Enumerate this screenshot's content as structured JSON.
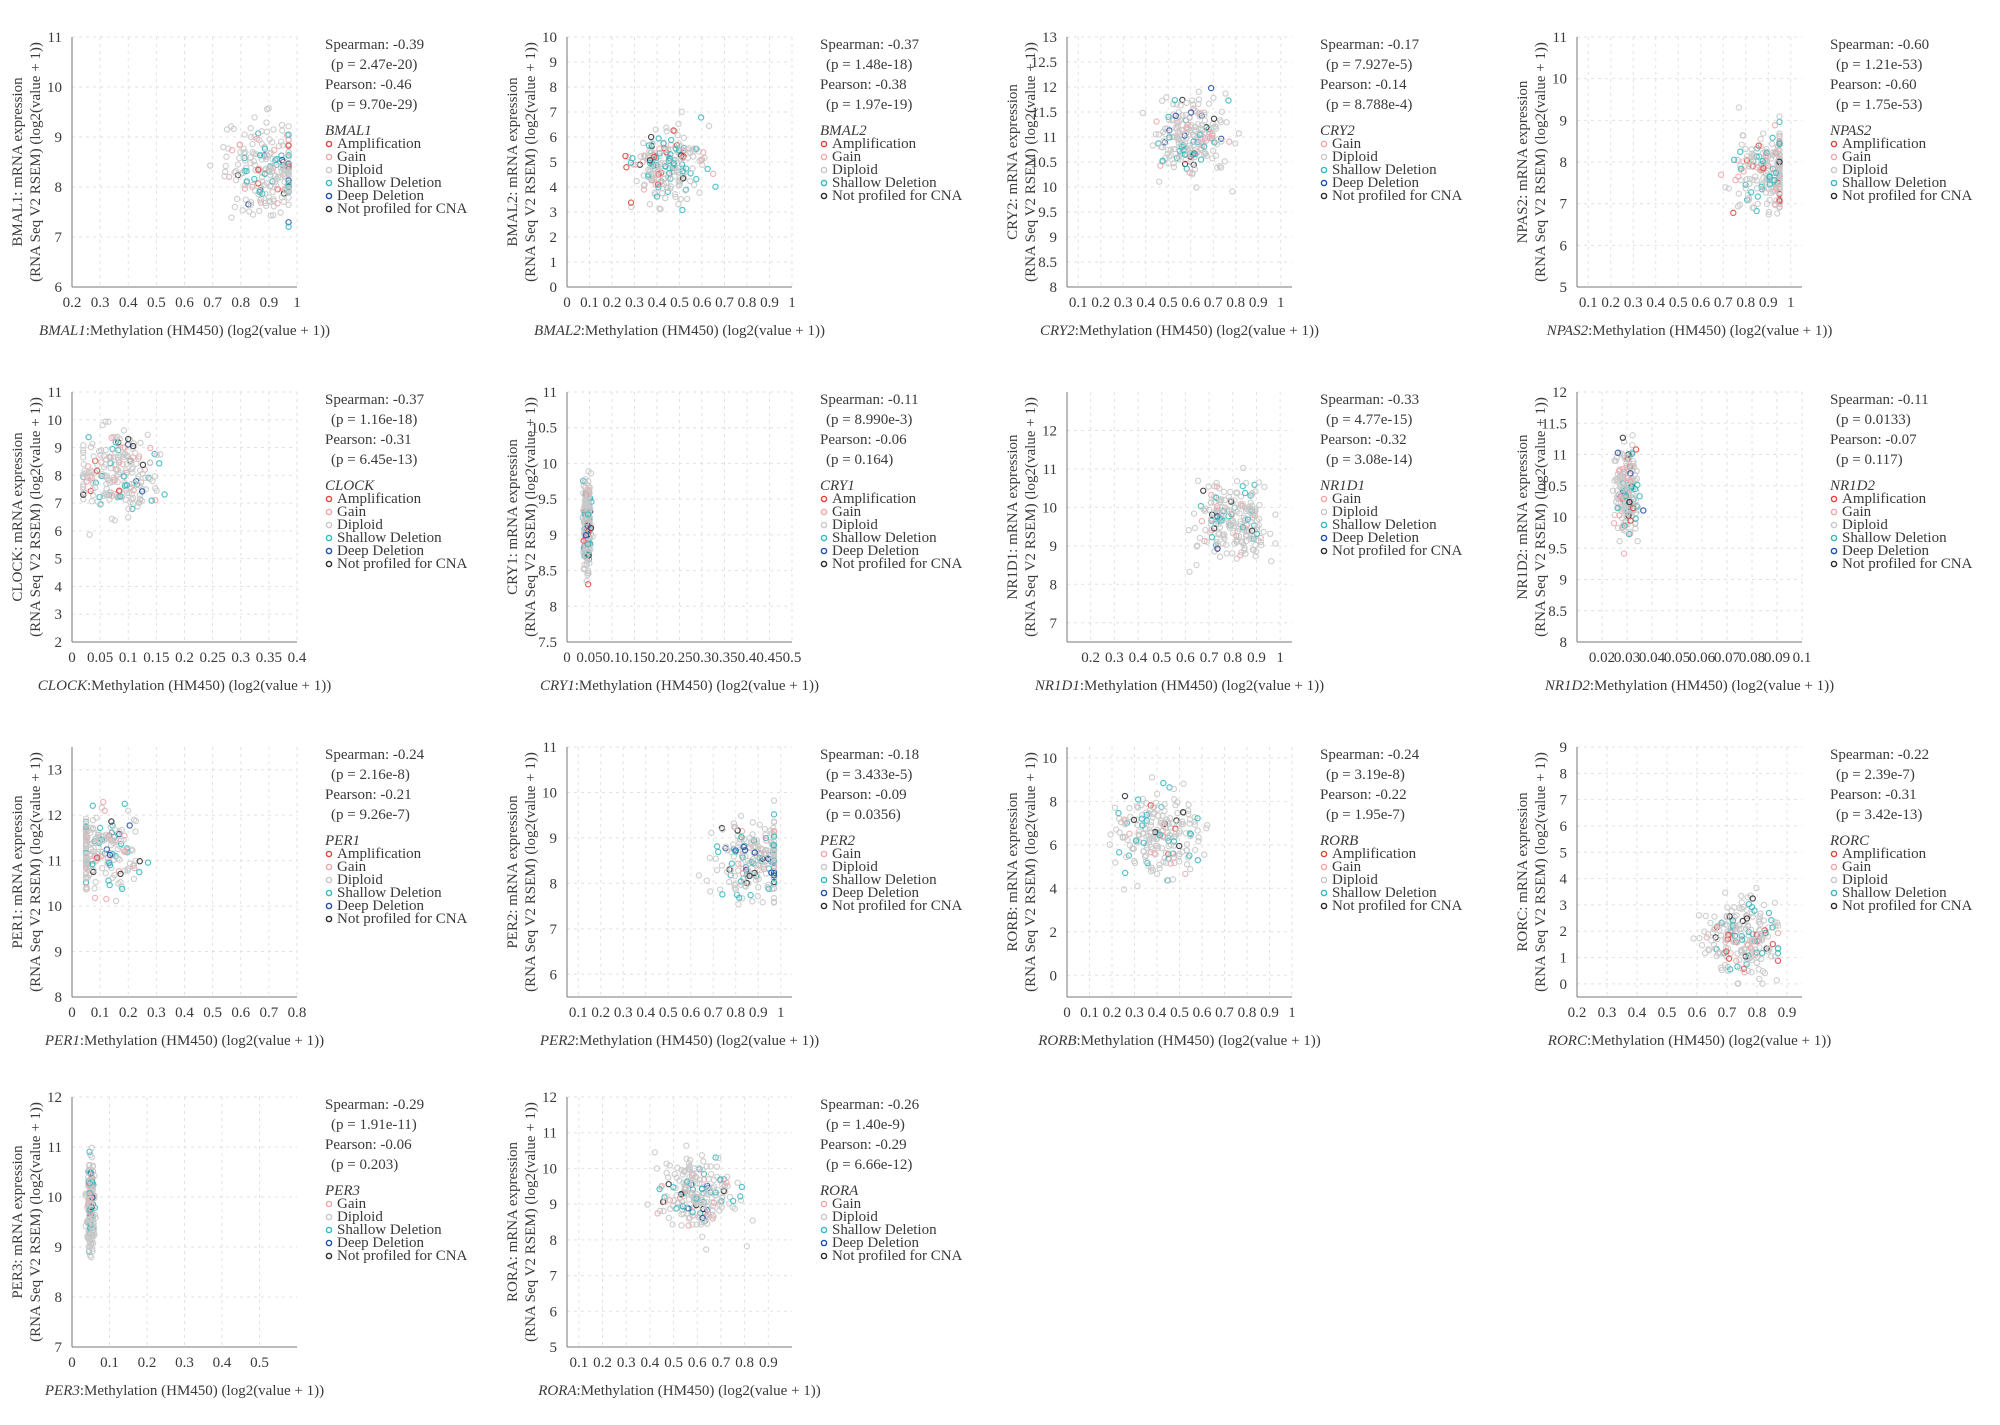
{
  "figure": {
    "title": ""
  },
  "colors": {
    "Amplification": "#e8413b",
    "Gain": "#f2a6aa",
    "Diploid": "#c8c8c8",
    "Shallow Deletion": "#35b8c0",
    "Deep Deletion": "#1f4fa8",
    "Not profiled for CNA": "#2a2a2a"
  },
  "chart_data": [
    {
      "type": "scatter",
      "gene": "BMAL1",
      "ylabel": [
        "BMAL1: mRNA expression",
        "(RNA Seq V2 RSEM) (log2(value + 1))"
      ],
      "xlabel_suffix": ":Methylation (HM450) (log2(value + 1))",
      "xlim": [
        0.2,
        1
      ],
      "ylim": [
        6,
        11
      ],
      "xticks": [
        "0.2",
        "0.3",
        "0.4",
        "0.5",
        "0.6",
        "0.7",
        "0.8",
        "0.9",
        "1"
      ],
      "yticks": [
        "6",
        "7",
        "8",
        "9",
        "10",
        "11"
      ],
      "stats": [
        "Spearman: -0.39",
        "(p = 2.47e-20)",
        "Pearson: -0.46",
        "(p = 9.70e-29)"
      ],
      "legend": [
        "Amplification",
        "Gain",
        "Diploid",
        "Shallow Deletion",
        "Deep Deletion",
        "Not profiled for CNA"
      ],
      "cloud": {
        "x": [
          0.2,
          0.97
        ],
        "y": [
          6,
          10.9
        ],
        "peak": [
          0.9,
          8.3
        ]
      }
    },
    {
      "type": "scatter",
      "gene": "BMAL2",
      "ylabel": [
        "BMAL2: mRNA expression",
        "(RNA Seq V2 RSEM) (log2(value + 1))"
      ],
      "xlabel_suffix": ":Methylation (HM450) (log2(value + 1))",
      "xlim": [
        0,
        1
      ],
      "ylim": [
        0,
        10
      ],
      "xticks": [
        "0",
        "0.1",
        "0.2",
        "0.3",
        "0.4",
        "0.5",
        "0.6",
        "0.7",
        "0.8",
        "0.9",
        "1"
      ],
      "yticks": [
        "0",
        "1",
        "2",
        "3",
        "4",
        "5",
        "6",
        "7",
        "8",
        "9",
        "10"
      ],
      "stats": [
        "Spearman: -0.37",
        "(p = 1.48e-18)",
        "Pearson: -0.38",
        "(p = 1.97e-19)"
      ],
      "legend": [
        "Amplification",
        "Gain",
        "Diploid",
        "Shallow Deletion",
        "Not profiled for CNA"
      ],
      "cloud": {
        "x": [
          0.08,
          0.88
        ],
        "y": [
          1.2,
          9.3
        ],
        "peak": [
          0.45,
          4.8
        ]
      }
    },
    {
      "type": "scatter",
      "gene": "CRY2",
      "ylabel": [
        "CRY2: mRNA expression",
        "(RNA Seq V2 RSEM) (log2(value + 1))"
      ],
      "xlabel_suffix": ":Methylation (HM450) (log2(value + 1))",
      "xlim": [
        0.05,
        1.05
      ],
      "ylim": [
        8,
        13
      ],
      "xticks": [
        "0.1",
        "0.2",
        "0.3",
        "0.4",
        "0.5",
        "0.6",
        "0.7",
        "0.8",
        "0.9",
        "1"
      ],
      "yticks": [
        "8",
        "8.5",
        "9",
        "9.5",
        "10",
        "10.5",
        "11",
        "11.5",
        "12",
        "12.5",
        "13"
      ],
      "stats": [
        "Spearman: -0.17",
        "(p = 7.927e-5)",
        "Pearson: -0.14",
        "(p = 8.788e-4)"
      ],
      "legend": [
        "Gain",
        "Diploid",
        "Shallow Deletion",
        "Deep Deletion",
        "Not profiled for CNA"
      ],
      "cloud": {
        "x": [
          0.15,
          1
        ],
        "y": [
          8.1,
          12.5
        ],
        "peak": [
          0.6,
          11
        ]
      }
    },
    {
      "type": "scatter",
      "gene": "NPAS2",
      "ylabel": [
        "NPAS2: mRNA expression",
        "(RNA Seq V2 RSEM) (log2(value + 1))"
      ],
      "xlabel_suffix": ":Methylation (HM450) (log2(value + 1))",
      "xlim": [
        0.05,
        1.05
      ],
      "ylim": [
        5,
        11
      ],
      "xticks": [
        "0.1",
        "0.2",
        "0.3",
        "0.4",
        "0.5",
        "0.6",
        "0.7",
        "0.8",
        "0.9",
        "1"
      ],
      "yticks": [
        "5",
        "6",
        "7",
        "8",
        "9",
        "10",
        "11"
      ],
      "stats": [
        "Spearman: -0.60",
        "(p = 1.21e-53)",
        "Pearson: -0.60",
        "(p = 1.75e-53)"
      ],
      "legend": [
        "Amplification",
        "Gain",
        "Diploid",
        "Shallow Deletion",
        "Not profiled for CNA"
      ],
      "cloud": {
        "x": [
          0.15,
          0.95
        ],
        "y": [
          5.4,
          10.5
        ],
        "peak": [
          0.9,
          7.8
        ]
      }
    },
    {
      "type": "scatter",
      "gene": "CLOCK",
      "ylabel": [
        "CLOCK: mRNA expression",
        "(RNA Seq V2 RSEM) (log2(value + 1))"
      ],
      "xlabel_suffix": ":Methylation (HM450) (log2(value + 1))",
      "xlim": [
        0,
        0.4
      ],
      "ylim": [
        2,
        11
      ],
      "xticks": [
        "0",
        "0.05",
        "0.1",
        "0.15",
        "0.2",
        "0.25",
        "0.3",
        "0.35",
        "0.4"
      ],
      "yticks": [
        "2",
        "3",
        "4",
        "5",
        "6",
        "7",
        "8",
        "9",
        "10",
        "11"
      ],
      "stats": [
        "Spearman: -0.37",
        "(p = 1.16e-18)",
        "Pearson: -0.31",
        "(p = 6.45e-13)"
      ],
      "legend": [
        "Amplification",
        "Gain",
        "Diploid",
        "Shallow Deletion",
        "Deep Deletion",
        "Not profiled for CNA"
      ],
      "cloud": {
        "x": [
          0.02,
          0.37
        ],
        "y": [
          2.8,
          10.9
        ],
        "peak": [
          0.08,
          8
        ]
      }
    },
    {
      "type": "scatter",
      "gene": "CRY1",
      "ylabel": [
        "CRY1: mRNA expression",
        "(RNA Seq V2 RSEM) (log2(value + 1))"
      ],
      "xlabel_suffix": ":Methylation (HM450) (log2(value + 1))",
      "xlim": [
        0,
        0.5
      ],
      "ylim": [
        7.5,
        11
      ],
      "xticks": [
        "0",
        "0.05",
        "0.1",
        "0.15",
        "0.2",
        "0.25",
        "0.3",
        "0.35",
        "0.4",
        "0.45",
        "0.5"
      ],
      "yticks": [
        "7.5",
        "8",
        "8.5",
        "9",
        "9.5",
        "10",
        "10.5",
        "11"
      ],
      "stats": [
        "Spearman: -0.11",
        "(p = 8.990e-3)",
        "Pearson: -0.06",
        "(p = 0.164)"
      ],
      "legend": [
        "Amplification",
        "Gain",
        "Diploid",
        "Shallow Deletion",
        "Deep Deletion",
        "Not profiled for CNA"
      ],
      "cloud": {
        "x": [
          0.03,
          0.07
        ],
        "y": [
          7.7,
          10.9
        ],
        "peak": [
          0.045,
          9.1
        ]
      }
    },
    {
      "type": "scatter",
      "gene": "NR1D1",
      "ylabel": [
        "NR1D1: mRNA expression",
        "(RNA Seq V2 RSEM) (log2(value + 1))"
      ],
      "xlabel_suffix": ":Methylation (HM450) (log2(value + 1))",
      "xlim": [
        0.1,
        1.05
      ],
      "ylim": [
        6.5,
        13
      ],
      "xticks": [
        "0.2",
        "0.3",
        "0.4",
        "0.5",
        "0.6",
        "0.7",
        "0.8",
        "0.9",
        "1"
      ],
      "yticks": [
        "7",
        "8",
        "9",
        "10",
        "11",
        "12"
      ],
      "stats": [
        "Spearman: -0.33",
        "(p = 4.77e-15)",
        "Pearson: -0.32",
        "(p = 3.08e-14)"
      ],
      "legend": [
        "Gain",
        "Diploid",
        "Shallow Deletion",
        "Deep Deletion",
        "Not profiled for CNA"
      ],
      "cloud": {
        "x": [
          0.2,
          0.98
        ],
        "y": [
          7,
          12.2
        ],
        "peak": [
          0.8,
          9.6
        ]
      }
    },
    {
      "type": "scatter",
      "gene": "NR1D2",
      "ylabel": [
        "NR1D2: mRNA expression",
        "(RNA Seq V2 RSEM) (log2(value + 1))"
      ],
      "xlabel_suffix": ":Methylation (HM450) (log2(value + 1))",
      "xlim": [
        0.01,
        0.1
      ],
      "ylim": [
        8,
        12
      ],
      "xticks": [
        "0.02",
        "0.03",
        "0.04",
        "0.05",
        "0.06",
        "0.07",
        "0.08",
        "0.09",
        "0.1"
      ],
      "yticks": [
        "8",
        "8.5",
        "9",
        "9.5",
        "10",
        "10.5",
        "11",
        "11.5",
        "12"
      ],
      "stats": [
        "Spearman: -0.11",
        "(p = 0.0133)",
        "Pearson: -0.07",
        "(p = 0.117)"
      ],
      "legend": [
        "Amplification",
        "Gain",
        "Diploid",
        "Shallow Deletion",
        "Deep Deletion",
        "Not profiled for CNA"
      ],
      "cloud": {
        "x": [
          0.024,
          0.045
        ],
        "y": [
          8.3,
          11.9
        ],
        "peak": [
          0.03,
          10.4
        ]
      }
    },
    {
      "type": "scatter",
      "gene": "PER1",
      "ylabel": [
        "PER1: mRNA expression",
        "(RNA Seq V2 RSEM) (log2(value + 1))"
      ],
      "xlabel_suffix": ":Methylation (HM450) (log2(value + 1))",
      "xlim": [
        0,
        0.8
      ],
      "ylim": [
        8,
        13.5
      ],
      "xticks": [
        "0",
        "0.1",
        "0.2",
        "0.3",
        "0.4",
        "0.5",
        "0.6",
        "0.7",
        "0.8"
      ],
      "yticks": [
        "8",
        "9",
        "10",
        "11",
        "12",
        "13"
      ],
      "stats": [
        "Spearman: -0.24",
        "(p = 2.16e-8)",
        "Pearson: -0.21",
        "(p = 9.26e-7)"
      ],
      "legend": [
        "Amplification",
        "Gain",
        "Diploid",
        "Shallow Deletion",
        "Deep Deletion",
        "Not profiled for CNA"
      ],
      "cloud": {
        "x": [
          0.05,
          0.75
        ],
        "y": [
          8.5,
          13.3
        ],
        "peak": [
          0.09,
          11.2
        ]
      }
    },
    {
      "type": "scatter",
      "gene": "PER2",
      "ylabel": [
        "PER2: mRNA expression",
        "(RNA Seq V2 RSEM) (log2(value + 1))"
      ],
      "xlabel_suffix": ":Methylation (HM450) (log2(value + 1))",
      "xlim": [
        0.05,
        1.05
      ],
      "ylim": [
        5.5,
        11
      ],
      "xticks": [
        "0.1",
        "0.2",
        "0.3",
        "0.4",
        "0.5",
        "0.6",
        "0.7",
        "0.8",
        "0.9",
        "1"
      ],
      "yticks": [
        "6",
        "7",
        "8",
        "9",
        "10",
        "11"
      ],
      "stats": [
        "Spearman: -0.18",
        "(p = 3.433e-5)",
        "Pearson: -0.09",
        "(p = 0.0356)"
      ],
      "legend": [
        "Gain",
        "Diploid",
        "Shallow Deletion",
        "Deep Deletion",
        "Not profiled for CNA"
      ],
      "cloud": {
        "x": [
          0.1,
          0.97
        ],
        "y": [
          6,
          10.8
        ],
        "peak": [
          0.88,
          8.5
        ]
      }
    },
    {
      "type": "scatter",
      "gene": "RORB",
      "ylabel": [
        "RORB: mRNA expression",
        "(RNA Seq V2 RSEM) (log2(value + 1))"
      ],
      "xlabel_suffix": ":Methylation (HM450) (log2(value + 1))",
      "xlim": [
        0,
        1
      ],
      "ylim": [
        -1,
        10.5
      ],
      "xticks": [
        "0",
        "0.1",
        "0.2",
        "0.3",
        "0.4",
        "0.5",
        "0.6",
        "0.7",
        "0.8",
        "0.9",
        "1"
      ],
      "yticks": [
        "0",
        "2",
        "4",
        "6",
        "8",
        "10"
      ],
      "stats": [
        "Spearman: -0.24",
        "(p = 3.19e-8)",
        "Pearson: -0.22",
        "(p = 1.95e-7)"
      ],
      "legend": [
        "Amplification",
        "Gain",
        "Diploid",
        "Shallow Deletion",
        "Not profiled for CNA"
      ],
      "cloud": {
        "x": [
          0.07,
          0.95
        ],
        "y": [
          0,
          10
        ],
        "peak": [
          0.4,
          6.5
        ]
      }
    },
    {
      "type": "scatter",
      "gene": "RORC",
      "ylabel": [
        "RORC: mRNA expression",
        "(RNA Seq V2 RSEM) (log2(value + 1))"
      ],
      "xlabel_suffix": ":Methylation (HM450) (log2(value + 1))",
      "xlim": [
        0.2,
        0.95
      ],
      "ylim": [
        -0.5,
        9
      ],
      "xticks": [
        "0.2",
        "0.3",
        "0.4",
        "0.5",
        "0.6",
        "0.7",
        "0.8",
        "0.9"
      ],
      "yticks": [
        "0",
        "1",
        "2",
        "3",
        "4",
        "5",
        "6",
        "7",
        "8",
        "9"
      ],
      "stats": [
        "Spearman: -0.22",
        "(p = 2.39e-7)",
        "Pearson: -0.31",
        "(p = 3.42e-13)"
      ],
      "legend": [
        "Amplification",
        "Gain",
        "Diploid",
        "Shallow Deletion",
        "Not profiled for CNA"
      ],
      "cloud": {
        "x": [
          0.3,
          0.87
        ],
        "y": [
          0,
          8.2
        ],
        "peak": [
          0.75,
          1.8
        ]
      }
    },
    {
      "type": "scatter",
      "gene": "PER3",
      "ylabel": [
        "PER3: mRNA expression",
        "(RNA Seq V2 RSEM) (log2(value + 1))"
      ],
      "xlabel_suffix": ":Methylation (HM450) (log2(value + 1))",
      "xlim": [
        0,
        0.6
      ],
      "ylim": [
        7,
        12
      ],
      "xticks": [
        "0",
        "0.1",
        "0.2",
        "0.3",
        "0.4",
        "0.5"
      ],
      "yticks": [
        "7",
        "8",
        "9",
        "10",
        "11",
        "12"
      ],
      "stats": [
        "Spearman: -0.29",
        "(p = 1.91e-11)",
        "Pearson: -0.06",
        "(p = 0.203)"
      ],
      "legend": [
        "Gain",
        "Diploid",
        "Shallow Deletion",
        "Deep Deletion",
        "Not profiled for CNA"
      ],
      "cloud": {
        "x": [
          0.03,
          0.08
        ],
        "y": [
          7.2,
          11.9
        ],
        "peak": [
          0.05,
          9.8
        ]
      }
    },
    {
      "type": "scatter",
      "gene": "RORA",
      "ylabel": [
        "RORA: mRNA expression",
        "(RNA Seq V2 RSEM) (log2(value + 1))"
      ],
      "xlabel_suffix": ":Methylation (HM450) (log2(value + 1))",
      "xlim": [
        0.05,
        1
      ],
      "ylim": [
        5,
        12
      ],
      "xticks": [
        "0.1",
        "0.2",
        "0.3",
        "0.4",
        "0.5",
        "0.6",
        "0.7",
        "0.8",
        "0.9"
      ],
      "yticks": [
        "5",
        "6",
        "7",
        "8",
        "9",
        "10",
        "11",
        "12"
      ],
      "stats": [
        "Spearman: -0.26",
        "(p = 1.40e-9)",
        "Pearson: -0.29",
        "(p = 6.66e-12)"
      ],
      "legend": [
        "Gain",
        "Diploid",
        "Shallow Deletion",
        "Deep Deletion",
        "Not profiled for CNA"
      ],
      "cloud": {
        "x": [
          0.12,
          0.92
        ],
        "y": [
          5.5,
          11.2
        ],
        "peak": [
          0.6,
          9.3
        ]
      }
    }
  ]
}
